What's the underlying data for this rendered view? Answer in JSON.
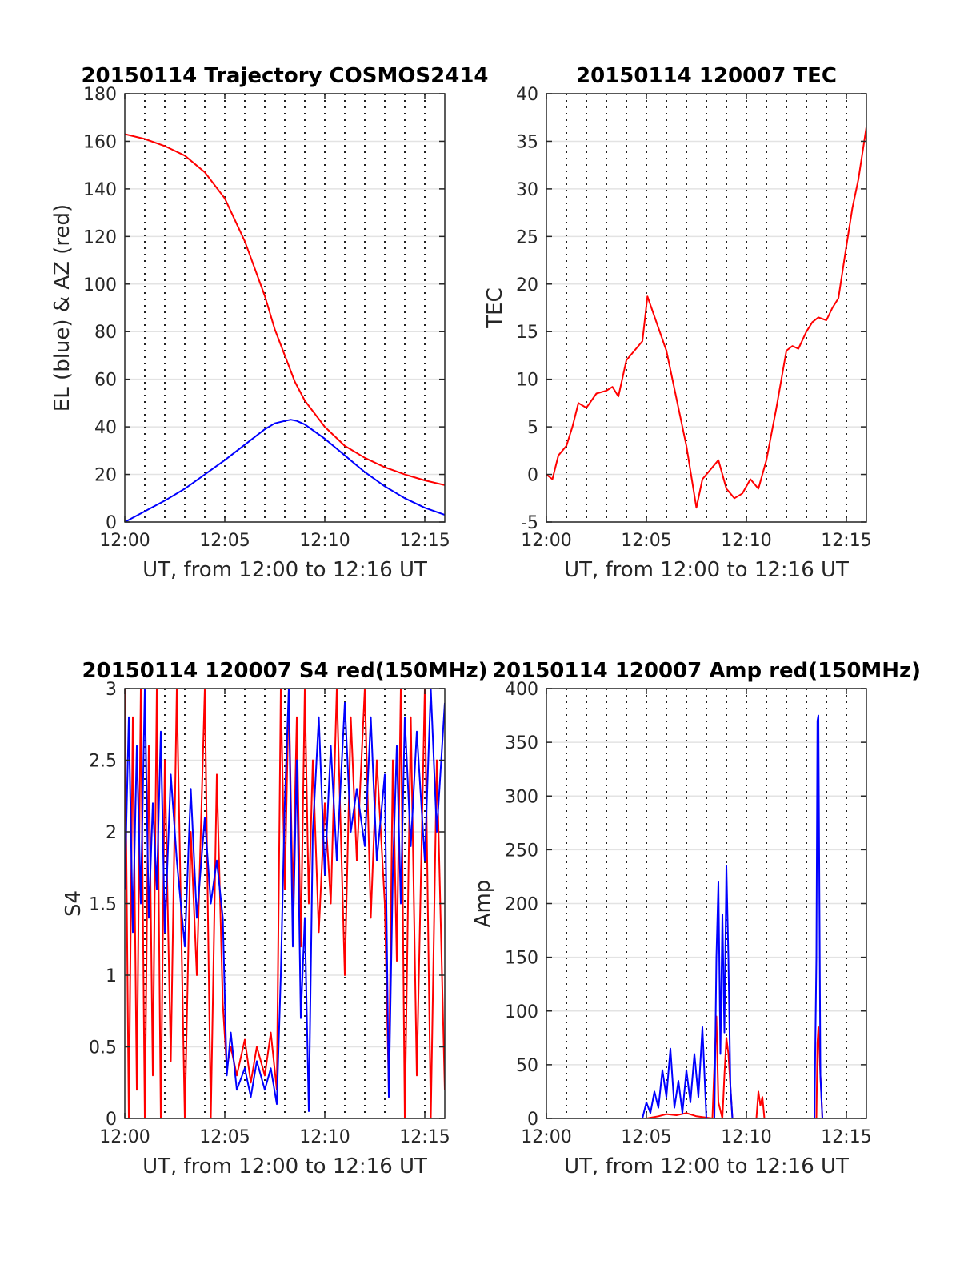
{
  "chart_data": [
    {
      "type": "line",
      "title": "20150114 Trajectory COSMOS2414",
      "xlabel": "UT, from 12:00 to 12:16 UT",
      "ylabel": "EL (blue) & AZ (red)",
      "xlim": [
        0,
        16
      ],
      "ylim": [
        0,
        180
      ],
      "xticks": [
        0,
        5,
        10,
        15
      ],
      "xtick_labels": [
        "12:00",
        "12:05",
        "12:10",
        "12:15"
      ],
      "yticks": [
        0,
        20,
        40,
        60,
        80,
        100,
        120,
        140,
        160,
        180
      ],
      "ytick_labels": [
        "0",
        "20",
        "40",
        "60",
        "80",
        "100",
        "120",
        "140",
        "160",
        "180"
      ],
      "grid": "horizontal solid, vertical dotted every minute",
      "series": [
        {
          "color": "#ff0000",
          "x": [
            0,
            1,
            2,
            3,
            4,
            5,
            6,
            7,
            7.5,
            8,
            8.5,
            9,
            10,
            11,
            12,
            13,
            14,
            15,
            16
          ],
          "y": [
            163,
            161,
            158,
            154,
            147,
            136,
            118,
            95,
            81,
            70,
            59,
            51,
            40,
            32,
            27,
            23,
            20,
            17.5,
            15.5
          ]
        },
        {
          "color": "#0000ff",
          "x": [
            0,
            1,
            2,
            3,
            4,
            5,
            6,
            7,
            7.5,
            8,
            8.3,
            8.6,
            9,
            10,
            11,
            12,
            13,
            14,
            15,
            16
          ],
          "y": [
            0,
            4.5,
            9,
            14,
            20,
            26,
            32.5,
            39,
            41.5,
            42.5,
            43,
            42.5,
            41,
            35,
            28,
            21,
            15,
            10,
            6,
            3
          ]
        }
      ]
    },
    {
      "type": "line",
      "title": "20150114 120007 TEC",
      "xlabel": "UT, from 12:00 to 12:16 UT",
      "ylabel": "TEC",
      "xlim": [
        0,
        16
      ],
      "ylim": [
        -5,
        40
      ],
      "xticks": [
        0,
        5,
        10,
        15
      ],
      "xtick_labels": [
        "12:00",
        "12:05",
        "12:10",
        "12:15"
      ],
      "yticks": [
        -5,
        0,
        5,
        10,
        15,
        20,
        25,
        30,
        35,
        40
      ],
      "ytick_labels": [
        "-5",
        "0",
        "5",
        "10",
        "15",
        "20",
        "25",
        "30",
        "35",
        "40"
      ],
      "grid": "horizontal solid, vertical dotted every minute",
      "series": [
        {
          "color": "#ff0000",
          "x": [
            0,
            0.3,
            0.6,
            1,
            1.3,
            1.6,
            2,
            2.5,
            3,
            3.3,
            3.6,
            4,
            4.4,
            4.8,
            5.05,
            5.5,
            6,
            6.5,
            7,
            7.5,
            7.8,
            8.2,
            8.6,
            9,
            9.4,
            9.8,
            10.2,
            10.6,
            11,
            11.5,
            12,
            12.3,
            12.6,
            13,
            13.3,
            13.6,
            14,
            14.3,
            14.6,
            15,
            15.3,
            15.6,
            16
          ],
          "y": [
            0,
            -0.5,
            2,
            3,
            5,
            7.5,
            7,
            8.5,
            8.8,
            9.2,
            8.2,
            12,
            13,
            14,
            18.7,
            16,
            13,
            8,
            3,
            -3.5,
            -0.5,
            0.5,
            1.5,
            -1.5,
            -2.5,
            -2,
            -0.5,
            -1.5,
            1.5,
            7,
            13,
            13.5,
            13.2,
            15,
            16,
            16.5,
            16.2,
            17.5,
            18.5,
            24,
            28,
            31,
            36.5
          ]
        }
      ]
    },
    {
      "type": "line",
      "title": "20150114 120007 S4 red(150MHz)",
      "xlabel": "UT, from 12:00 to 12:16 UT",
      "ylabel": "S4",
      "xlim": [
        0,
        16
      ],
      "ylim": [
        0,
        3
      ],
      "xticks": [
        0,
        5,
        10,
        15
      ],
      "xtick_labels": [
        "12:00",
        "12:05",
        "12:10",
        "12:15"
      ],
      "yticks": [
        0,
        0.5,
        1,
        1.5,
        2,
        2.5,
        3
      ],
      "ytick_labels": [
        "0",
        "0.5",
        "1",
        "1.5",
        "2",
        "2.5",
        "3"
      ],
      "grid": "horizontal solid, vertical dotted every minute",
      "series": [
        {
          "color": "#ff0000",
          "x": [
            0,
            0.2,
            0.4,
            0.6,
            0.8,
            1,
            1.2,
            1.4,
            1.6,
            1.8,
            2,
            2.3,
            2.6,
            3,
            3.3,
            3.6,
            4,
            4.3,
            4.6,
            4.9,
            5.1,
            5.3,
            5.6,
            6,
            6.3,
            6.6,
            7,
            7.3,
            7.6,
            7.8,
            8,
            8.2,
            8.4,
            8.6,
            8.8,
            9,
            9.2,
            9.4,
            9.7,
            10,
            10.3,
            10.6,
            11,
            11.3,
            11.6,
            12,
            12.3,
            12.6,
            13,
            13.2,
            13.4,
            13.6,
            13.8,
            14,
            14.3,
            14.6,
            15,
            15.3,
            15.6,
            16
          ],
          "y": [
            3,
            0,
            2.8,
            0.2,
            3,
            0,
            2.6,
            0.3,
            3,
            0,
            2.5,
            0.4,
            3,
            0,
            2,
            1,
            3,
            0,
            2.4,
            0.8,
            0.35,
            0.5,
            0.3,
            0.55,
            0.25,
            0.5,
            0.3,
            0.6,
            0.2,
            3,
            1.6,
            3,
            1.5,
            2.8,
            1.2,
            3,
            1.5,
            2.5,
            1.3,
            2.2,
            1.5,
            3,
            1,
            2.8,
            1.8,
            3,
            1.4,
            2.5,
            1.5,
            0.2,
            2.5,
            1.1,
            3,
            0,
            2.8,
            0.3,
            3,
            0,
            2.5,
            0.2
          ]
        },
        {
          "color": "#0000ff",
          "x": [
            0,
            0.2,
            0.4,
            0.6,
            0.8,
            1,
            1.2,
            1.4,
            1.6,
            1.8,
            2,
            2.3,
            2.6,
            3,
            3.3,
            3.6,
            4,
            4.3,
            4.6,
            4.9,
            5.1,
            5.3,
            5.6,
            6,
            6.3,
            6.6,
            7,
            7.3,
            7.6,
            7.8,
            8,
            8.2,
            8.4,
            8.6,
            8.8,
            9,
            9.2,
            9.4,
            9.7,
            10,
            10.3,
            10.6,
            11,
            11.3,
            11.6,
            12,
            12.3,
            12.6,
            13,
            13.2,
            13.4,
            13.6,
            13.8,
            14,
            14.3,
            14.6,
            15,
            15.3,
            15.6,
            16
          ],
          "y": [
            1.6,
            2.8,
            1.3,
            2.6,
            1.5,
            3,
            1.4,
            2.2,
            1.6,
            2.7,
            1.3,
            2.4,
            1.8,
            1.2,
            2.3,
            1.4,
            2.1,
            1.5,
            1.8,
            1.4,
            0.3,
            0.6,
            0.2,
            0.35,
            0.15,
            0.4,
            0.2,
            0.35,
            0.1,
            1,
            2.2,
            3,
            1.2,
            2.5,
            0.7,
            1.4,
            0.05,
            2,
            2.8,
            1.7,
            2.6,
            1.8,
            2.9,
            2,
            2.3,
            1.9,
            2.8,
            1.8,
            2.4,
            0.15,
            1.7,
            2.6,
            1.5,
            2.8,
            1.9,
            2.7,
            1.8,
            3,
            2,
            2.9
          ]
        }
      ]
    },
    {
      "type": "line",
      "title": "20150114 120007 Amp red(150MHz)",
      "xlabel": "UT, from 12:00 to 12:16 UT",
      "ylabel": "Amp",
      "xlim": [
        0,
        16
      ],
      "ylim": [
        0,
        400
      ],
      "xticks": [
        0,
        5,
        10,
        15
      ],
      "xtick_labels": [
        "12:00",
        "12:05",
        "12:10",
        "12:15"
      ],
      "yticks": [
        0,
        50,
        100,
        150,
        200,
        250,
        300,
        350,
        400
      ],
      "ytick_labels": [
        "0",
        "50",
        "100",
        "150",
        "200",
        "250",
        "300",
        "350",
        "400"
      ],
      "grid": "horizontal solid, vertical dotted every minute",
      "series": [
        {
          "color": "#ff0000",
          "x": [
            0,
            5,
            5.6,
            6,
            6.5,
            7,
            7.5,
            8.3,
            8.4,
            8.5,
            8.6,
            8.8,
            8.9,
            9,
            9.1,
            9.3,
            10.5,
            10.6,
            10.7,
            10.8,
            10.9,
            13.5,
            13.55,
            13.6,
            13.7,
            13.8,
            16
          ],
          "y": [
            0,
            0,
            2,
            4,
            3,
            5,
            2,
            0,
            50,
            95,
            15,
            0,
            40,
            75,
            60,
            0,
            0,
            25,
            12,
            20,
            0,
            0,
            70,
            85,
            40,
            0,
            0
          ]
        },
        {
          "color": "#0000ff",
          "x": [
            0,
            4.8,
            5,
            5.2,
            5.4,
            5.6,
            5.8,
            6,
            6.2,
            6.4,
            6.6,
            6.8,
            7,
            7.2,
            7.4,
            7.6,
            7.8,
            8,
            8.2,
            8.4,
            8.5,
            8.6,
            8.7,
            8.8,
            8.9,
            9,
            9.1,
            9.2,
            9.3,
            9.5,
            13.4,
            13.5,
            13.55,
            13.6,
            13.65,
            13.7,
            13.8,
            16
          ],
          "y": [
            0,
            0,
            15,
            5,
            25,
            10,
            45,
            20,
            65,
            10,
            35,
            5,
            45,
            15,
            60,
            20,
            85,
            0,
            0,
            0,
            150,
            220,
            60,
            190,
            80,
            235,
            150,
            30,
            0,
            0,
            0,
            150,
            370,
            375,
            200,
            40,
            0,
            0
          ]
        }
      ]
    }
  ]
}
